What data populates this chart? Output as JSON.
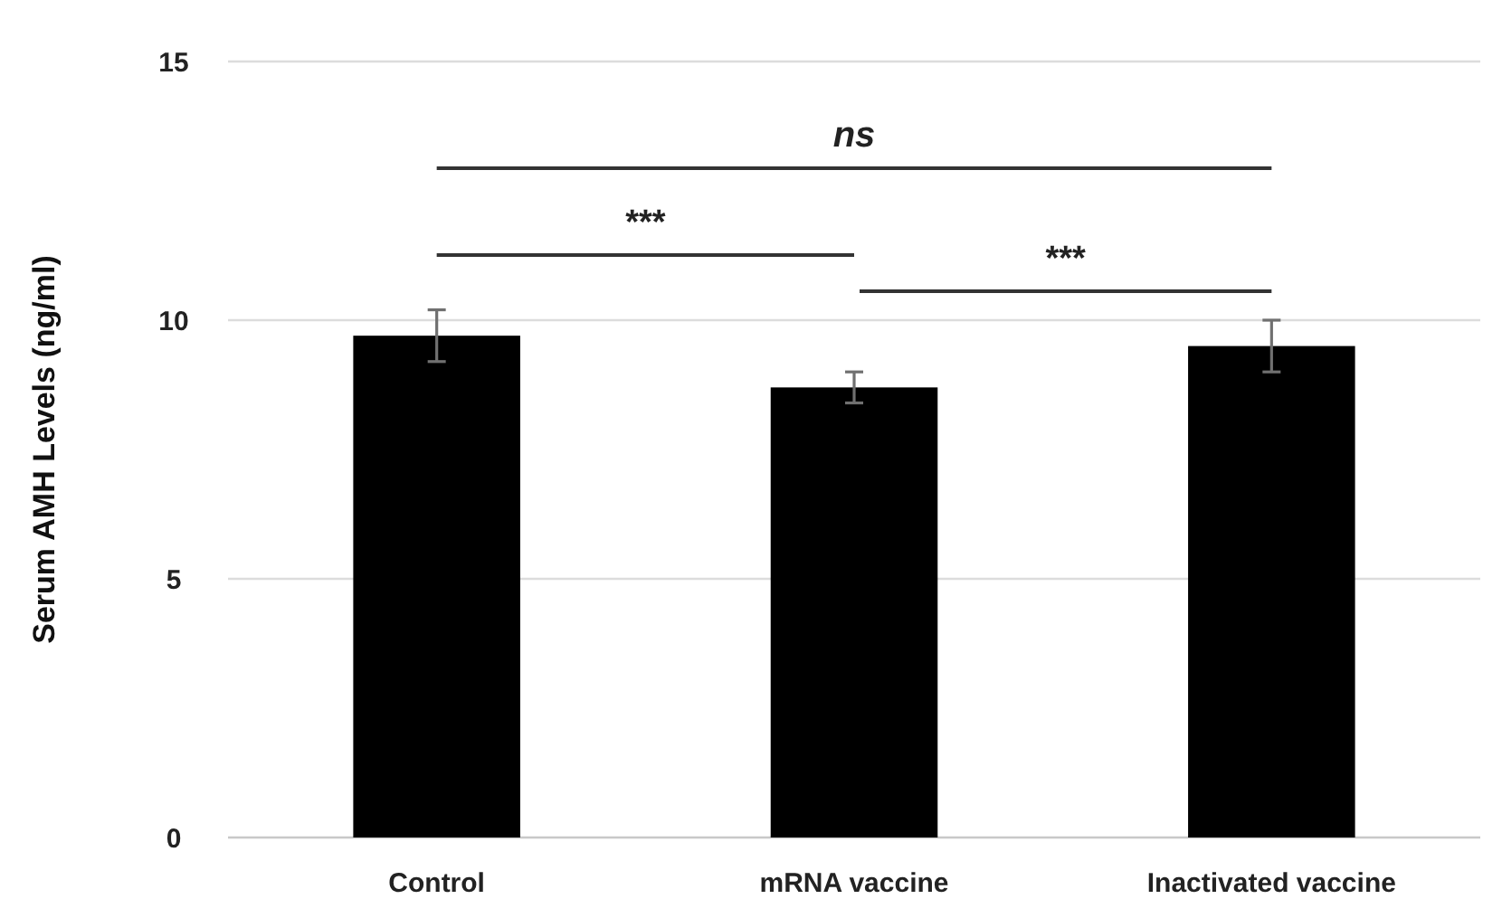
{
  "chart_data": {
    "type": "bar",
    "ylabel": "Serum AMH Levels (ng/ml)",
    "categories": [
      "Control",
      "mRNA vaccine",
      "Inactivated vaccine"
    ],
    "values": [
      9.7,
      8.7,
      9.5
    ],
    "errors": [
      0.5,
      0.3,
      0.5
    ],
    "color": "#000000",
    "ylim": [
      0,
      15
    ],
    "yticks": [
      0,
      5,
      10,
      15
    ],
    "grid": "y",
    "annotations": [
      "ns",
      "***",
      "***"
    ]
  }
}
